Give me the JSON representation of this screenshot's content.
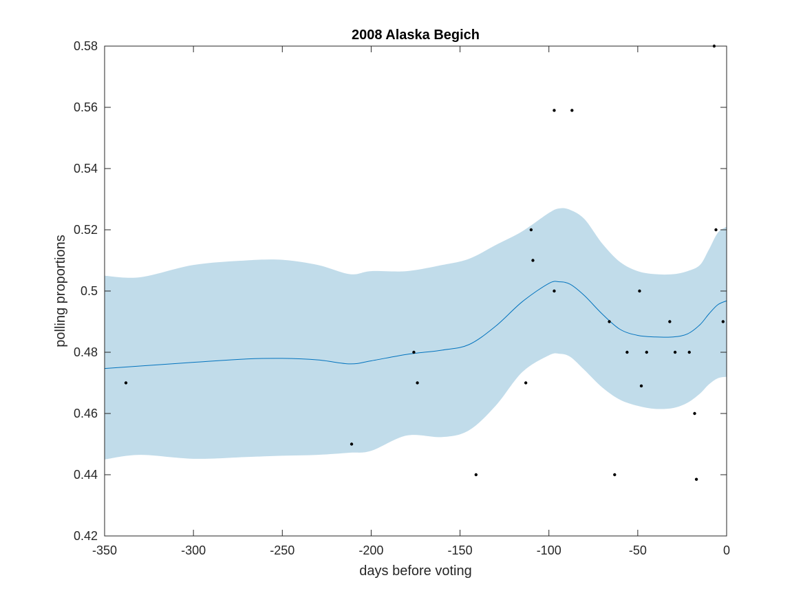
{
  "chart_data": {
    "type": "scatter",
    "title": "2008 Alaska Begich",
    "xlabel": "days before voting",
    "ylabel": "polling proportions",
    "xlim": [
      -350,
      0
    ],
    "ylim": [
      0.42,
      0.58
    ],
    "xticks": [
      -350,
      -300,
      -250,
      -200,
      -150,
      -100,
      -50,
      0
    ],
    "xtick_labels": [
      "-350",
      "-300",
      "-250",
      "-200",
      "-150",
      "-100",
      "-50",
      "0"
    ],
    "yticks": [
      0.42,
      0.44,
      0.46,
      0.48,
      0.5,
      0.52,
      0.54,
      0.56,
      0.58
    ],
    "ytick_labels": [
      "0.42",
      "0.44",
      "0.46",
      "0.48",
      "0.5",
      "0.52",
      "0.54",
      "0.56",
      "0.58"
    ],
    "grid": false,
    "colors": {
      "band": "#c1dcea",
      "line": "#0072bd",
      "points": "#000000",
      "axes": "#262626"
    },
    "polls": {
      "x": [
        -338,
        -211,
        -176,
        -174,
        -141,
        -113,
        -110,
        -109,
        -97,
        -97,
        -87,
        -66,
        -63,
        -56,
        -49,
        -48,
        -45,
        -32,
        -29,
        -21,
        -18,
        -17,
        -7,
        -6,
        -2
      ],
      "y": [
        0.47,
        0.45,
        0.48,
        0.47,
        0.44,
        0.47,
        0.52,
        0.51,
        0.5,
        0.559,
        0.559,
        0.49,
        0.44,
        0.48,
        0.5,
        0.469,
        0.48,
        0.49,
        0.48,
        0.48,
        0.46,
        0.4385,
        0.58,
        0.52,
        0.49
      ]
    },
    "trend": {
      "x": [
        -350,
        -330,
        -300,
        -270,
        -250,
        -230,
        -212,
        -200,
        -180,
        -160,
        -145,
        -130,
        -115,
        -100,
        -94,
        -88,
        -80,
        -70,
        -60,
        -50,
        -40,
        -30,
        -22,
        -15,
        -10,
        -5,
        0
      ],
      "mean": [
        0.4747,
        0.4755,
        0.4767,
        0.4778,
        0.478,
        0.4775,
        0.4762,
        0.4772,
        0.4793,
        0.4807,
        0.4825,
        0.4885,
        0.4965,
        0.5025,
        0.503,
        0.5022,
        0.4985,
        0.4925,
        0.4875,
        0.4855,
        0.485,
        0.485,
        0.486,
        0.489,
        0.4925,
        0.4955,
        0.4968
      ],
      "upper": [
        0.505,
        0.5045,
        0.5085,
        0.51,
        0.5102,
        0.5085,
        0.5055,
        0.5065,
        0.5065,
        0.5085,
        0.5105,
        0.515,
        0.5195,
        0.5255,
        0.527,
        0.5265,
        0.5235,
        0.5155,
        0.5095,
        0.5065,
        0.5055,
        0.5055,
        0.5065,
        0.5085,
        0.5135,
        0.519,
        0.521
      ],
      "lower": [
        0.445,
        0.4465,
        0.4452,
        0.4458,
        0.4462,
        0.4465,
        0.4472,
        0.4478,
        0.4528,
        0.4523,
        0.4545,
        0.4625,
        0.4735,
        0.479,
        0.4795,
        0.4785,
        0.4742,
        0.4685,
        0.4645,
        0.4625,
        0.4615,
        0.4618,
        0.4635,
        0.4665,
        0.4695,
        0.4715,
        0.472
      ]
    }
  }
}
